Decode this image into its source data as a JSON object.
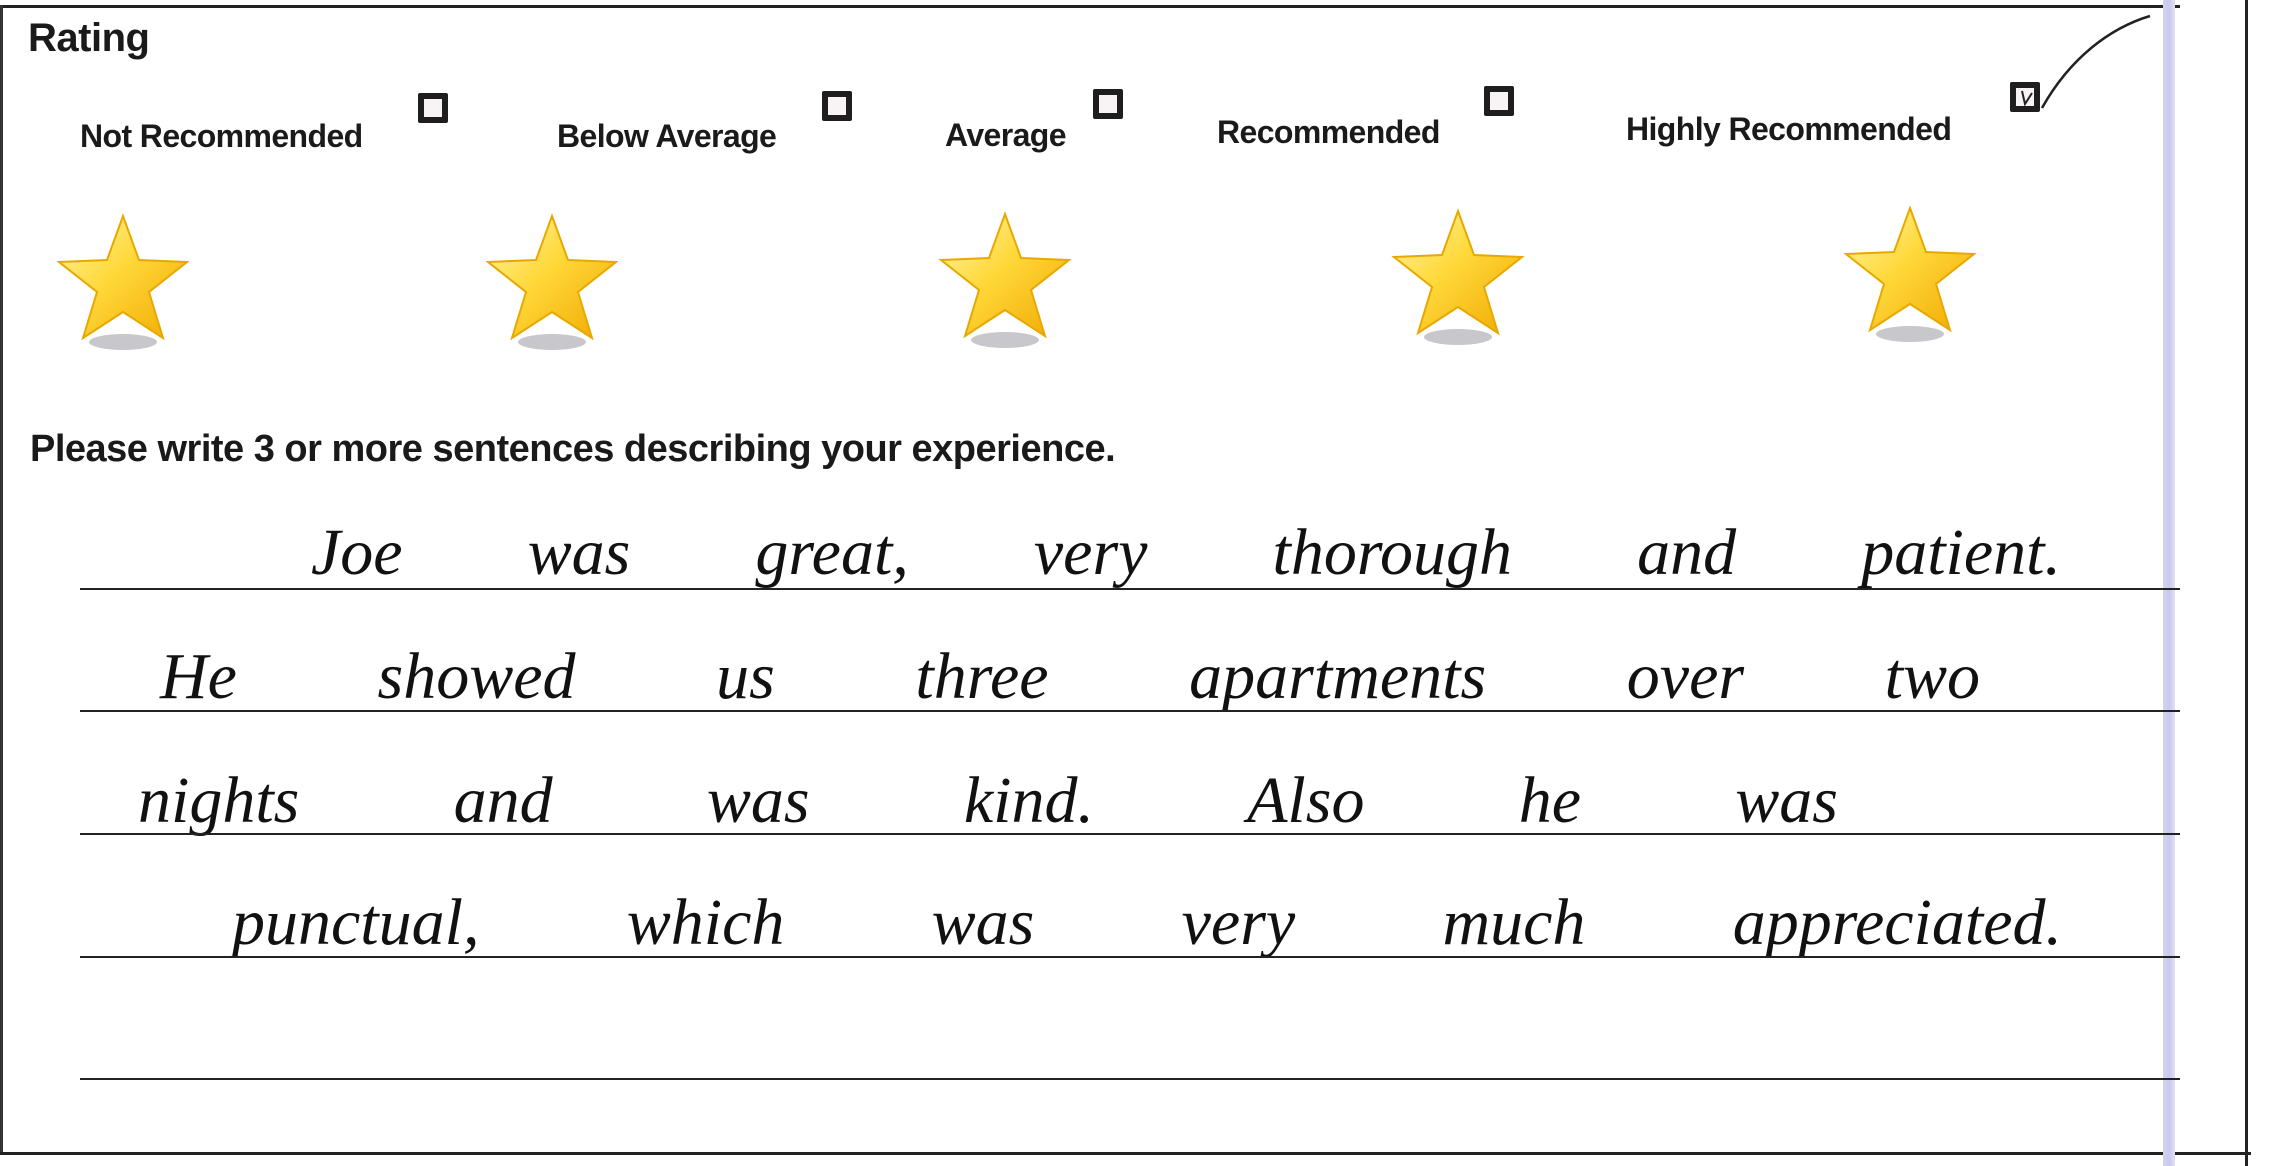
{
  "rating": {
    "heading": "Rating",
    "options": [
      {
        "label": "Not Recommended",
        "checked": false
      },
      {
        "label": "Below Average",
        "checked": false
      },
      {
        "label": "Average",
        "checked": false
      },
      {
        "label": "Recommended",
        "checked": false
      },
      {
        "label": "Highly Recommended",
        "checked": true
      }
    ],
    "star_color": "#f5c400"
  },
  "experience": {
    "prompt": "Please write 3 or more sentences describing your experience.",
    "handwritten_lines": [
      "Joe was great, very thorough and patient.",
      "He showed us three apartments over two",
      "nights and was kind. Also he was",
      "punctual, which was very much appreciated."
    ]
  }
}
